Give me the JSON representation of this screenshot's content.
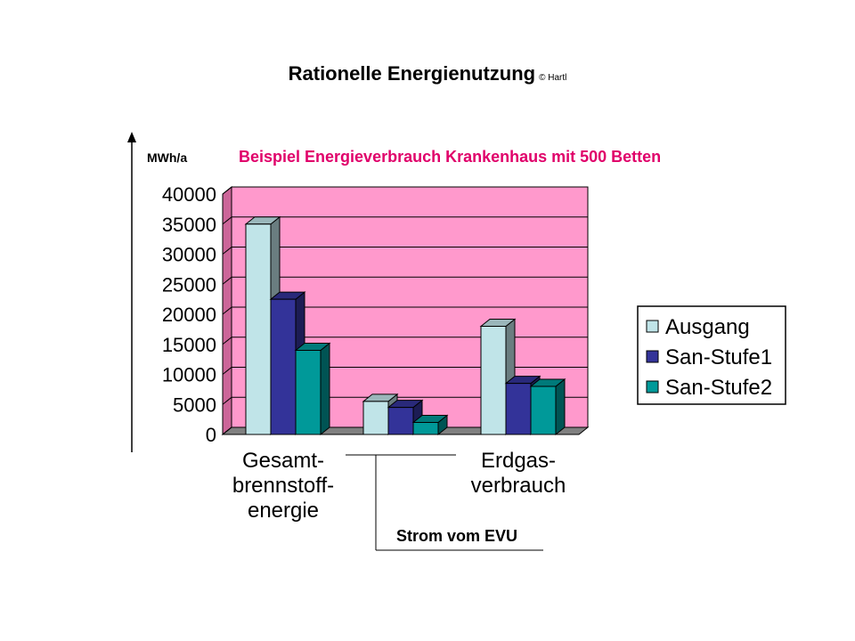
{
  "page": {
    "title": "Rationelle Energienutzung",
    "copyright": "© Hartl"
  },
  "chart_data": {
    "type": "bar",
    "title": "Beispiel Energieverbrauch Krankenhaus mit 500 Betten",
    "ylabel": "MWh/a",
    "ylim": [
      0,
      40000
    ],
    "yticks": [
      "40000",
      "35000",
      "30000",
      "25000",
      "20000",
      "15000",
      "10000",
      "5000",
      "0"
    ],
    "grid": true,
    "legend_position": "right",
    "categories": [
      "Gesamt-\nbrennstoff-\nenergie",
      "Strom vom EVU",
      "Erdgas-\nverbrauch"
    ],
    "series": [
      {
        "name": "Ausgang",
        "color": "#c0e4e8",
        "values": [
          35000,
          5500,
          18000
        ]
      },
      {
        "name": "San-Stufe1",
        "color": "#333399",
        "values": [
          22500,
          4500,
          8500
        ]
      },
      {
        "name": "San-Stufe2",
        "color": "#009999",
        "values": [
          14000,
          2000,
          8000
        ]
      }
    ],
    "colors": {
      "plot_background": "#ff99cc",
      "title_color": "#e0006a"
    }
  }
}
